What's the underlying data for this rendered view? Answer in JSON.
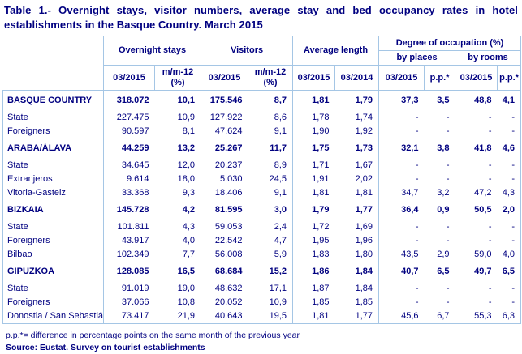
{
  "title": {
    "full": "Table 1.- Overnight stays, visitor numbers, average stay and bed occupancy rates in hotel establishments in the Basque Country. March 2015",
    "lines": [
      "Table 1.- Overnight stays, visitor numbers, average stay and bed occupancy rates in hotel",
      "establishments in the Basque Country. March 2015"
    ]
  },
  "colors": {
    "text": "#000080",
    "border": "#a5c6e5",
    "background": "#ffffff"
  },
  "table": {
    "groups": {
      "overnight": "Overnight stays",
      "visitors": "Visitors",
      "avg_length": "Average length",
      "occupation": "Degree of occupation (%)",
      "by_places": "by places",
      "by_rooms": "by rooms"
    },
    "col_keys": [
      "overnight-03-2015",
      "overnight-m-m-12",
      "visitors-03-2015",
      "visitors-m-m-12",
      "avg-length-03-2015",
      "avg-length-03-2014",
      "occ-places-03-2015",
      "occ-places-pp",
      "occ-rooms-03-2015",
      "occ-rooms-pp"
    ],
    "cols": [
      "03/2015",
      "m/m-12\n(%)",
      "03/2015",
      "m/m-12\n(%)",
      "03/2015",
      "03/2014",
      "03/2015",
      "p.p.*",
      "03/2015",
      "p.p.*"
    ],
    "rows": [
      {
        "label": "BASQUE COUNTRY",
        "bold": true,
        "values": [
          "318.072",
          "10,1",
          "175.546",
          "8,7",
          "1,81",
          "1,79",
          "37,3",
          "3,5",
          "48,8",
          "4,1"
        ]
      },
      {
        "label": "State",
        "bold": false,
        "values": [
          "227.475",
          "10,9",
          "127.922",
          "8,6",
          "1,78",
          "1,74",
          "-",
          "-",
          "-",
          "-"
        ]
      },
      {
        "label": "Foreigners",
        "bold": false,
        "values": [
          "90.597",
          "8,1",
          "47.624",
          "9,1",
          "1,90",
          "1,92",
          "-",
          "-",
          "-",
          "-"
        ]
      },
      {
        "label": "ARABA/ÁLAVA",
        "bold": true,
        "values": [
          "44.259",
          "13,2",
          "25.267",
          "11,7",
          "1,75",
          "1,73",
          "32,1",
          "3,8",
          "41,8",
          "4,6"
        ]
      },
      {
        "label": "State",
        "bold": false,
        "values": [
          "34.645",
          "12,0",
          "20.237",
          "8,9",
          "1,71",
          "1,67",
          "-",
          "-",
          "-",
          "-"
        ]
      },
      {
        "label": "Extranjeros",
        "bold": false,
        "values": [
          "9.614",
          "18,0",
          "5.030",
          "24,5",
          "1,91",
          "2,02",
          "-",
          "-",
          "-",
          "-"
        ]
      },
      {
        "label": "Vitoria-Gasteiz",
        "bold": false,
        "values": [
          "33.368",
          "9,3",
          "18.406",
          "9,1",
          "1,81",
          "1,81",
          "34,7",
          "3,2",
          "47,2",
          "4,3"
        ]
      },
      {
        "label": "BIZKAIA",
        "bold": true,
        "values": [
          "145.728",
          "4,2",
          "81.595",
          "3,0",
          "1,79",
          "1,77",
          "36,4",
          "0,9",
          "50,5",
          "2,0"
        ]
      },
      {
        "label": "State",
        "bold": false,
        "values": [
          "101.811",
          "4,3",
          "59.053",
          "2,4",
          "1,72",
          "1,69",
          "-",
          "-",
          "-",
          "-"
        ]
      },
      {
        "label": "Foreigners",
        "bold": false,
        "values": [
          "43.917",
          "4,0",
          "22.542",
          "4,7",
          "1,95",
          "1,96",
          "-",
          "-",
          "-",
          "-"
        ]
      },
      {
        "label": "Bilbao",
        "bold": false,
        "values": [
          "102.349",
          "7,7",
          "56.008",
          "5,9",
          "1,83",
          "1,80",
          "43,5",
          "2,9",
          "59,0",
          "4,0"
        ]
      },
      {
        "label": "GIPUZKOA",
        "bold": true,
        "values": [
          "128.085",
          "16,5",
          "68.684",
          "15,2",
          "1,86",
          "1,84",
          "40,7",
          "6,5",
          "49,7",
          "6,5"
        ]
      },
      {
        "label": "State",
        "bold": false,
        "values": [
          "91.019",
          "19,0",
          "48.632",
          "17,1",
          "1,87",
          "1,84",
          "-",
          "-",
          "-",
          "-"
        ]
      },
      {
        "label": "Foreigners",
        "bold": false,
        "values": [
          "37.066",
          "10,8",
          "20.052",
          "10,9",
          "1,85",
          "1,85",
          "-",
          "-",
          "-",
          "-"
        ]
      },
      {
        "label": "Donostia / San Sebastián",
        "bold": false,
        "values": [
          "73.417",
          "21,9",
          "40.643",
          "19,5",
          "1,81",
          "1,77",
          "45,6",
          "6,7",
          "55,3",
          "6,3"
        ]
      }
    ]
  },
  "footer": {
    "footnote": "p.p.*= difference in percentage points on the same month of the previous year",
    "source": "Source: Eustat. Survey on tourist establishments"
  }
}
